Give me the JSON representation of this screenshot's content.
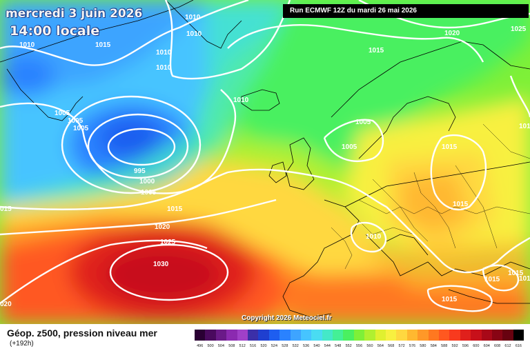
{
  "header": {
    "date_title": "mercredi 3 juin 2026",
    "time_title": "14:00 locale",
    "run_info": "Run ECMWF 12Z du mardi 26 mai 2026"
  },
  "footer": {
    "field_title": "Géop. z500, pression niveau mer",
    "lead_time": "(+192h)",
    "copyright": "Copyright 2026 Meteociel.fr"
  },
  "isobar_labels": [
    {
      "text": "1010"
    },
    {
      "text": "1010"
    },
    {
      "text": "1010"
    },
    {
      "text": "1015"
    },
    {
      "text": "1010"
    },
    {
      "text": "1010"
    },
    {
      "text": "1015"
    },
    {
      "text": "1020"
    },
    {
      "text": "1025"
    },
    {
      "text": "1010"
    },
    {
      "text": "1005"
    },
    {
      "text": "1005"
    },
    {
      "text": "1005"
    },
    {
      "text": "1005"
    },
    {
      "text": "1005"
    },
    {
      "text": "1015"
    },
    {
      "text": "101"
    },
    {
      "text": "995"
    },
    {
      "text": "1000"
    },
    {
      "text": "1005"
    },
    {
      "text": "1015"
    },
    {
      "text": "1015"
    },
    {
      "text": "1020"
    },
    {
      "text": "1025"
    },
    {
      "text": "1010"
    },
    {
      "text": "1030"
    },
    {
      "text": "1015"
    },
    {
      "text": "1015"
    },
    {
      "text": "101"
    },
    {
      "text": "1015"
    },
    {
      "text": "020"
    },
    {
      "text": "015"
    }
  ],
  "legend": {
    "ticks": [
      "496",
      "500",
      "504",
      "508",
      "512",
      "516",
      "520",
      "524",
      "528",
      "532",
      "536",
      "540",
      "544",
      "548",
      "552",
      "556",
      "560",
      "564",
      "568",
      "572",
      "576",
      "580",
      "584",
      "588",
      "592",
      "596",
      "600",
      "604",
      "608",
      "612",
      "616"
    ],
    "colors": [
      "#2a0033",
      "#4a0a5e",
      "#6a1a88",
      "#8b2ab0",
      "#a040c8",
      "#3b2fa8",
      "#1f3fd0",
      "#1e5ef0",
      "#2a82ff",
      "#3ea4ff",
      "#46c4ff",
      "#4adcf2",
      "#44e8c8",
      "#44f096",
      "#4af060",
      "#7ef038",
      "#b0f030",
      "#e0f030",
      "#f8f040",
      "#ffd840",
      "#ffb830",
      "#ff9828",
      "#ff7820",
      "#ff5820",
      "#f83a1e",
      "#e0201c",
      "#c8101a",
      "#a80818",
      "#880414",
      "#680210",
      "#000000"
    ]
  },
  "colors": {
    "isobar": "#ffffff",
    "polar_blue": "#2a82ff",
    "cyan": "#46c4ff",
    "green": "#4af060",
    "yellow": "#f8f040",
    "orange": "#ff9828",
    "red": "#e0201c",
    "dark_red": "#a80818"
  }
}
